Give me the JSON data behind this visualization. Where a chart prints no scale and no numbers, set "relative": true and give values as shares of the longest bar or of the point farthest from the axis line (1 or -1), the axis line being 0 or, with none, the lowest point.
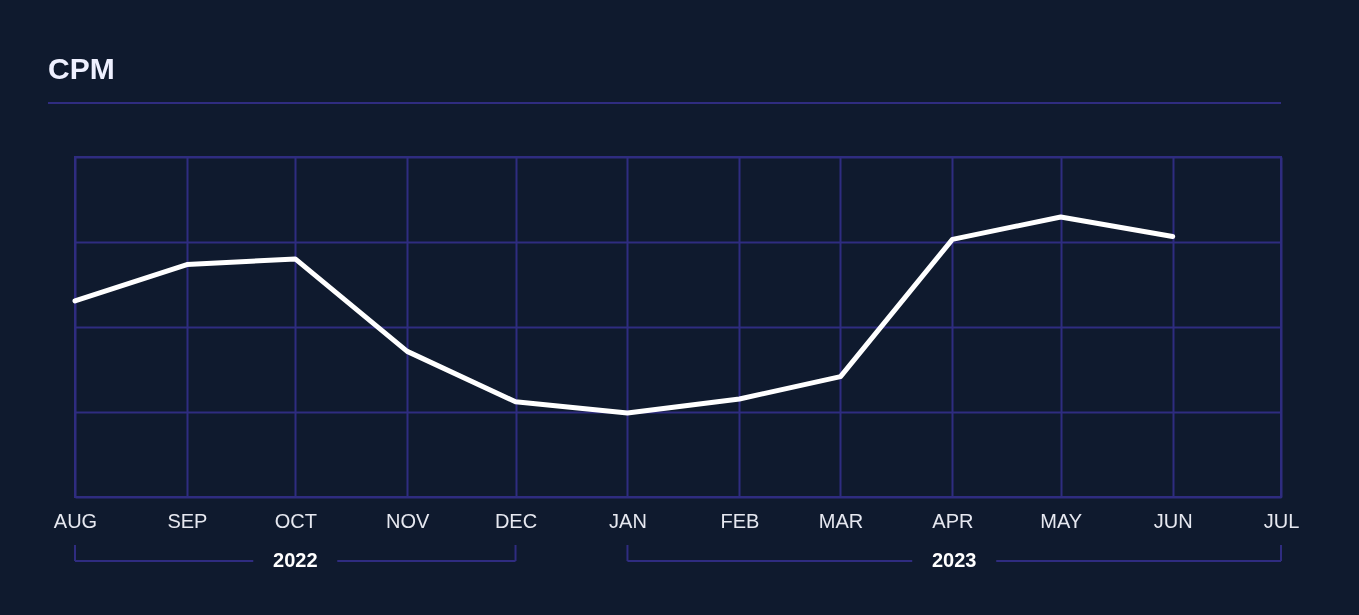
{
  "chart_data": {
    "type": "line",
    "title": "CPM",
    "relative": true,
    "grid": true,
    "marker": "none",
    "line_style": "solid",
    "x": [
      "2022-08",
      "2022-09",
      "2022-10",
      "2022-11",
      "2022-12",
      "2023-01",
      "2023-02",
      "2023-03",
      "2023-04",
      "2023-05",
      "2023-06"
    ],
    "xlim": [
      "2022-08",
      "2023-07"
    ],
    "xticks": [
      {
        "value": "2022-08",
        "label": "AUG"
      },
      {
        "value": "2022-09",
        "label": "SEP"
      },
      {
        "value": "2022-10",
        "label": "OCT"
      },
      {
        "value": "2022-11",
        "label": "NOV"
      },
      {
        "value": "2022-12",
        "label": "DEC"
      },
      {
        "value": "2023-01",
        "label": "JAN"
      },
      {
        "value": "2023-02",
        "label": "FEB"
      },
      {
        "value": "2023-03",
        "label": "MAR"
      },
      {
        "value": "2023-04",
        "label": "APR"
      },
      {
        "value": "2023-05",
        "label": "MAY"
      },
      {
        "value": "2023-06",
        "label": "JUN"
      },
      {
        "value": "2023-07",
        "label": "JUL"
      }
    ],
    "series": [
      {
        "color": "#ffffff",
        "values": [
          0.7,
          0.83,
          0.85,
          0.52,
          0.34,
          0.3,
          0.35,
          0.43,
          0.92,
          1.0,
          0.93
        ]
      }
    ],
    "annotations": [
      "2022",
      "2023"
    ]
  }
}
